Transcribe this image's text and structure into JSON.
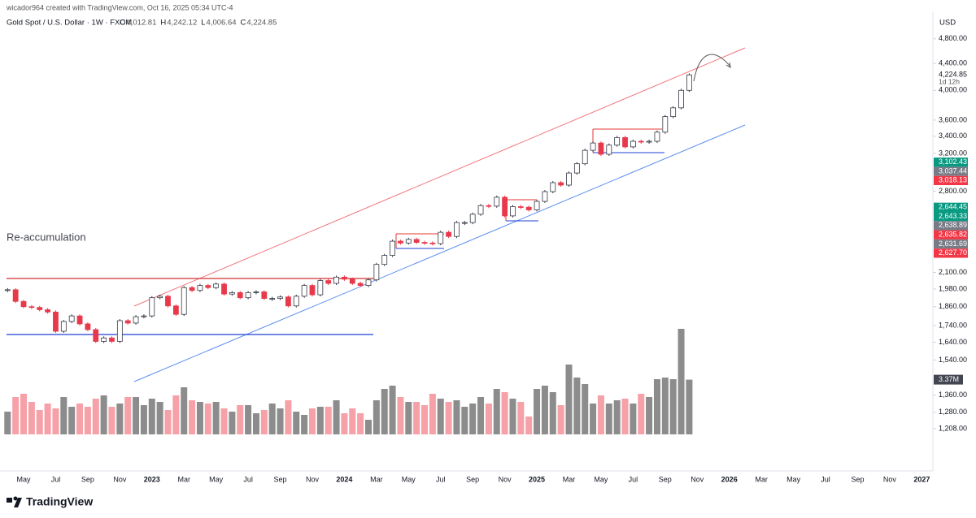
{
  "header": {
    "credit": "wicador964 created with TradingView.com, Oct 16, 2025 05:34 UTC-4",
    "symbol": "Gold Spot / U.S. Dollar · 1W · FXCM",
    "ohlc": [
      {
        "key": "O",
        "value": "4,012.81"
      },
      {
        "key": "H",
        "value": "4,242.12"
      },
      {
        "key": "L",
        "value": "4,006.64"
      },
      {
        "key": "C",
        "value": "4,224.85"
      }
    ]
  },
  "brand": "TradingView",
  "chart_data": {
    "type": "candlestick",
    "currency": "USD",
    "annotation": "Re-accumulation",
    "log_scale": true,
    "up_color": "#ffffff",
    "up_border": "#363a45",
    "down_color": "#e8394a",
    "volume_up_color": "#8c8c8c",
    "volume_down_color": "#f6a0a8",
    "ylim": [
      1040,
      5275
    ],
    "yticks": [
      {
        "value": 4800,
        "label": "4,800.00"
      },
      {
        "value": 4400,
        "label": "4,400.00"
      },
      {
        "value": 4000,
        "label": "4,000.00"
      },
      {
        "value": 3600,
        "label": "3,600.00"
      },
      {
        "value": 3400,
        "label": "3,400.00"
      },
      {
        "value": 3200,
        "label": "3,200.00"
      },
      {
        "value": 2800,
        "label": "2,800.00"
      },
      {
        "value": 2100,
        "label": "2,100.00"
      },
      {
        "value": 1980,
        "label": "1,980.00"
      },
      {
        "value": 1860,
        "label": "1,860.00"
      },
      {
        "value": 1740,
        "label": "1,740.00"
      },
      {
        "value": 1640,
        "label": "1,640.00"
      },
      {
        "value": 1540,
        "label": "1,540.00"
      },
      {
        "value": 1360,
        "label": "1,360.00"
      },
      {
        "value": 1280,
        "label": "1,280.00"
      },
      {
        "value": 1208,
        "label": "1,208.00"
      }
    ],
    "last_price": {
      "value": 4224.85,
      "label": "4,224.85"
    },
    "countdown": "1d 12h",
    "price_tags": [
      {
        "value": 3102.43,
        "label": "3,102.43",
        "color": "#089981"
      },
      {
        "value": 3037.44,
        "label": "3,037.44",
        "color": "#787b86"
      },
      {
        "value": 3018.13,
        "label": "3,018.13",
        "color": "#f23645"
      },
      {
        "value": 2644.45,
        "label": "2,644.45",
        "color": "#089981"
      },
      {
        "value": 2643.33,
        "label": "2,643.33",
        "color": "#089981"
      },
      {
        "value": 2638.89,
        "label": "2,638.89",
        "color": "#787b86"
      },
      {
        "value": 2635.82,
        "label": "2,635.82",
        "color": "#f23645"
      },
      {
        "value": 2631.69,
        "label": "2,631.69",
        "color": "#787b86"
      },
      {
        "value": 2627.7,
        "label": "2,627.70",
        "color": "#f23645"
      }
    ],
    "volume_tag": {
      "value": 3.37,
      "label": "3.37M"
    },
    "categories": [
      null,
      null,
      "May",
      null,
      null,
      null,
      "Jul",
      null,
      null,
      null,
      "Sep",
      null,
      null,
      null,
      "Nov",
      null,
      null,
      null,
      "2023",
      null,
      null,
      null,
      "Mar",
      null,
      null,
      null,
      "May",
      null,
      null,
      null,
      "Jul",
      null,
      null,
      null,
      "Sep",
      null,
      null,
      null,
      "Nov",
      null,
      null,
      null,
      "2024",
      null,
      null,
      null,
      "Mar",
      null,
      null,
      null,
      "May",
      null,
      null,
      null,
      "Jul",
      null,
      null,
      null,
      "Sep",
      null,
      null,
      null,
      "Nov",
      null,
      null,
      null,
      "2025",
      null,
      null,
      null,
      "Mar",
      null,
      null,
      null,
      "May",
      null,
      null,
      null,
      "Jul",
      null,
      null,
      null,
      "Sep",
      null,
      null,
      null,
      "Nov",
      null,
      null,
      null,
      "2026",
      null,
      null,
      null,
      "Mar",
      null,
      null,
      null,
      "May",
      null,
      null,
      null,
      "Jul",
      null,
      null,
      null,
      "Sep",
      null,
      null,
      null,
      "Nov",
      null,
      null,
      null,
      "2027",
      null
    ],
    "series": [
      {
        "name": "Price",
        "values": [
          1975,
          1895,
          1860,
          1855,
          1840,
          1825,
          1705,
          1765,
          1800,
          1750,
          1715,
          1645,
          1665,
          1645,
          1770,
          1755,
          1795,
          1800,
          1920,
          1930,
          1865,
          1810,
          1990,
          1970,
          2005,
          1990,
          2015,
          1945,
          1955,
          1920,
          1955,
          1960,
          1915,
          1915,
          1925,
          1865,
          1930,
          2005,
          1940,
          2040,
          2020,
          2065,
          2050,
          2020,
          2005,
          2045,
          2160,
          2230,
          2345,
          2330,
          2360,
          2335,
          2330,
          2325,
          2420,
          2385,
          2505,
          2505,
          2580,
          2660,
          2655,
          2740,
          2565,
          2650,
          2645,
          2620,
          2700,
          2795,
          2885,
          2860,
          2985,
          3085,
          3235,
          3320,
          3190,
          3295,
          3385,
          3275,
          3340,
          3335,
          3340,
          3450,
          3645,
          3760,
          4000,
          4224.85,
          null,
          null,
          null,
          null,
          null,
          null,
          null,
          null,
          null,
          null,
          null,
          null,
          null,
          null,
          null,
          null,
          null,
          null,
          null,
          null,
          null,
          null,
          null,
          null,
          null,
          null,
          null,
          null,
          null,
          null
        ]
      },
      {
        "name": "Volume",
        "values": [
          1.4,
          2.3,
          2.5,
          2.0,
          1.5,
          1.9,
          1.6,
          2.3,
          1.7,
          1.9,
          1.7,
          2.2,
          2.4,
          1.7,
          1.9,
          2.3,
          2.3,
          1.8,
          2.2,
          2.0,
          1.5,
          2.4,
          2.9,
          2.1,
          2.0,
          1.9,
          2.0,
          1.6,
          1.4,
          1.8,
          1.8,
          1.3,
          1.5,
          1.9,
          1.6,
          2.1,
          1.4,
          1.2,
          1.6,
          1.7,
          1.7,
          2.1,
          1.3,
          1.6,
          1.3,
          0.9,
          2.1,
          2.8,
          3.0,
          2.3,
          2.0,
          2.0,
          1.8,
          2.5,
          2.2,
          2.0,
          2.1,
          1.7,
          1.9,
          2.3,
          1.9,
          2.8,
          2.6,
          2.2,
          2.0,
          1.1,
          2.8,
          3.0,
          2.6,
          1.8,
          4.3,
          3.5,
          3.1,
          1.9,
          2.4,
          1.9,
          2.1,
          2.2,
          1.9,
          2.5,
          2.3,
          3.4,
          3.5,
          3.4,
          6.5,
          3.37,
          null,
          null,
          null,
          null,
          null,
          null,
          null,
          null,
          null,
          null,
          null,
          null,
          null,
          null,
          null,
          null,
          null,
          null,
          null,
          null,
          null,
          null,
          null,
          null,
          null,
          null,
          null,
          null,
          null,
          null
        ]
      }
    ]
  }
}
